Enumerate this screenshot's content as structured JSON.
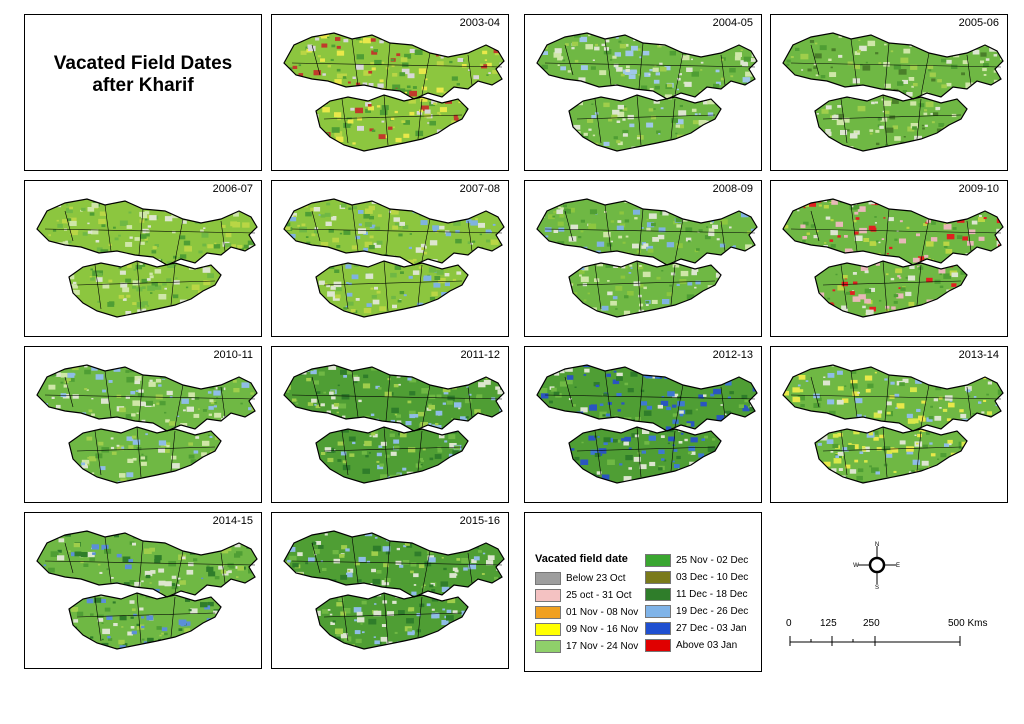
{
  "title": {
    "line1": "Vacated Field Dates",
    "line2": "after Kharif"
  },
  "panels": [
    {
      "year": "2003-04",
      "colors": [
        "#8cc63f",
        "#b9d645",
        "#e8e84a",
        "#4f9e34",
        "#d8d8d8",
        "#c0392b"
      ]
    },
    {
      "year": "2004-05",
      "colors": [
        "#6fb844",
        "#9fce4b",
        "#4f9e34",
        "#cfe7a8",
        "#9fc8e8",
        "#dde6d0"
      ]
    },
    {
      "year": "2005-06",
      "colors": [
        "#6fb844",
        "#9fce4b",
        "#4f9e34",
        "#cfe7a8",
        "#dde6d0",
        "#4a7f2a"
      ]
    },
    {
      "year": "2006-07",
      "colors": [
        "#8cc63f",
        "#b9d645",
        "#6fb844",
        "#cfe7a8",
        "#dde6d0",
        "#4f9e34"
      ]
    },
    {
      "year": "2007-08",
      "colors": [
        "#8cc63f",
        "#6fb844",
        "#b9d645",
        "#7fb3e0",
        "#dde6d0",
        "#4f9e34"
      ]
    },
    {
      "year": "2008-09",
      "colors": [
        "#6fb844",
        "#8cc63f",
        "#4f9e34",
        "#cfe7a8",
        "#7fb3e0",
        "#dde6d0"
      ]
    },
    {
      "year": "2009-10",
      "colors": [
        "#6fb844",
        "#b9d645",
        "#4f9e34",
        "#e8b8b8",
        "#e02020",
        "#dde6d0"
      ]
    },
    {
      "year": "2010-11",
      "colors": [
        "#6fb844",
        "#4f9e34",
        "#9fce4b",
        "#8fbde6",
        "#dde6d0",
        "#cfe7a8"
      ]
    },
    {
      "year": "2011-12",
      "colors": [
        "#4f9e34",
        "#6fb844",
        "#9fce4b",
        "#8fbde6",
        "#dde6d0",
        "#2f7d2a"
      ]
    },
    {
      "year": "2012-13",
      "colors": [
        "#4f9e34",
        "#2f7d2a",
        "#6fb844",
        "#3d78d0",
        "#2a55c0",
        "#dde6d0"
      ]
    },
    {
      "year": "2013-14",
      "colors": [
        "#6fb844",
        "#d8e84a",
        "#4f9e34",
        "#8fbde6",
        "#dde6d0",
        "#e8e84a"
      ]
    },
    {
      "year": "2014-15",
      "colors": [
        "#6fb844",
        "#4f9e34",
        "#9fce4b",
        "#5b8fd8",
        "#dde6d0",
        "#2f7d2a"
      ]
    },
    {
      "year": "2015-16",
      "colors": [
        "#4f9e34",
        "#6fb844",
        "#2f7d2a",
        "#8fbde6",
        "#dde6d0",
        "#9fce4b"
      ]
    }
  ],
  "legend": {
    "title": "Vacated field date",
    "items": [
      {
        "label": "Below 23 Oct",
        "color": "#9e9e9e"
      },
      {
        "label": "25 oct - 31 Oct",
        "color": "#f4c2c2"
      },
      {
        "label": "01 Nov - 08 Nov",
        "color": "#f0a020"
      },
      {
        "label": "09 Nov - 16 Nov",
        "color": "#ffff00"
      },
      {
        "label": "17 Nov - 24 Nov",
        "color": "#8fd06a"
      },
      {
        "label": "25 Nov - 02 Dec",
        "color": "#3aa630"
      },
      {
        "label": "03 Dec - 10 Dec",
        "color": "#7a7a1a"
      },
      {
        "label": "11 Dec - 18 Dec",
        "color": "#2f7d2a"
      },
      {
        "label": "19 Dec - 26 Dec",
        "color": "#7fb3e8"
      },
      {
        "label": "27 Dec - 03 Jan",
        "color": "#1f4fd0"
      },
      {
        "label": "Above 03 Jan",
        "color": "#e00000"
      }
    ]
  },
  "compass": {
    "n": "N",
    "s": "S",
    "e": "E",
    "w": "W"
  },
  "scale": {
    "ticks": [
      "0",
      "125",
      "250",
      "500 Kms"
    ]
  }
}
